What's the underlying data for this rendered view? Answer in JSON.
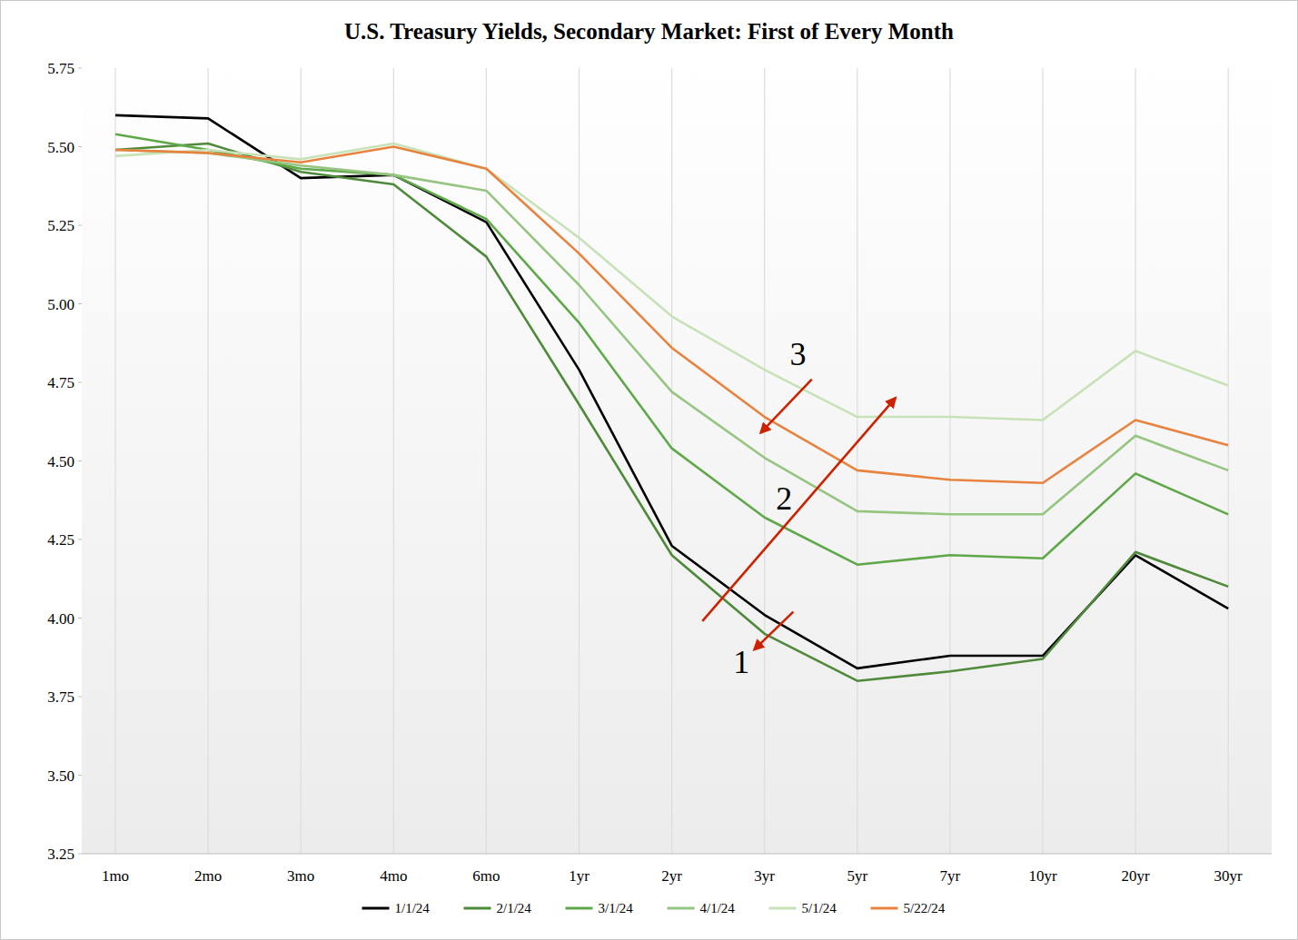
{
  "chart_data": {
    "type": "line",
    "title": "U.S. Treasury Yields, Secondary Market: First of Every Month",
    "categories": [
      "1mo",
      "2mo",
      "3mo",
      "4mo",
      "6mo",
      "1yr",
      "2yr",
      "3yr",
      "5yr",
      "7yr",
      "10yr",
      "20yr",
      "30yr"
    ],
    "series": [
      {
        "name": "1/1/24",
        "color": "#000000",
        "values": [
          5.6,
          5.59,
          5.4,
          5.41,
          5.26,
          4.79,
          4.23,
          4.01,
          3.84,
          3.88,
          3.88,
          4.2,
          4.03
        ]
      },
      {
        "name": "2/1/24",
        "color": "#4f8a3b",
        "values": [
          5.49,
          5.51,
          5.42,
          5.38,
          5.15,
          4.68,
          4.2,
          3.95,
          3.8,
          3.83,
          3.87,
          4.21,
          4.1
        ]
      },
      {
        "name": "3/1/24",
        "color": "#5fa84a",
        "values": [
          5.54,
          5.49,
          5.43,
          5.41,
          5.27,
          4.94,
          4.54,
          4.32,
          4.17,
          4.2,
          4.19,
          4.46,
          4.33
        ]
      },
      {
        "name": "4/1/24",
        "color": "#95c581",
        "values": [
          5.49,
          5.48,
          5.44,
          5.41,
          5.36,
          5.06,
          4.72,
          4.51,
          4.34,
          4.33,
          4.33,
          4.58,
          4.47
        ]
      },
      {
        "name": "5/1/24",
        "color": "#c8e2b8",
        "values": [
          5.47,
          5.49,
          5.46,
          5.51,
          5.43,
          5.21,
          4.96,
          4.79,
          4.64,
          4.64,
          4.63,
          4.85,
          4.74
        ]
      },
      {
        "name": "5/22/24",
        "color": "#e8833f",
        "values": [
          5.49,
          5.48,
          5.45,
          5.5,
          5.43,
          5.16,
          4.86,
          4.64,
          4.47,
          4.44,
          4.43,
          4.63,
          4.55
        ]
      }
    ],
    "ylim": [
      3.25,
      5.75
    ],
    "yticks": [
      3.25,
      {
        "value": 3.5,
        "label": "3.50"
      },
      3.75,
      {
        "value": 4,
        "label": "4.00"
      },
      4.25,
      {
        "value": 4.5,
        "label": "4.50"
      },
      4.75,
      {
        "value": 5,
        "label": "5.00"
      },
      5.25,
      {
        "value": 5.5,
        "label": "5.50"
      },
      5.75
    ],
    "grid": true,
    "legend": "bottom",
    "annotations": [
      {
        "text": "1",
        "x": 6.75,
        "y": 3.86,
        "color": "#cc2200",
        "arrow": {
          "from": [
            7.31,
            4.02
          ],
          "to": [
            6.89,
            3.9
          ]
        }
      },
      {
        "text": "2",
        "x": 7.21,
        "y": 4.38,
        "color": "#cc2200",
        "arrow": {
          "from": [
            6.33,
            3.99
          ],
          "to": [
            8.41,
            4.7
          ]
        }
      },
      {
        "text": "3",
        "x": 7.36,
        "y": 4.84,
        "color": "#cc2200",
        "arrow": {
          "from": [
            7.51,
            4.76
          ],
          "to": [
            6.96,
            4.59
          ]
        }
      }
    ]
  }
}
